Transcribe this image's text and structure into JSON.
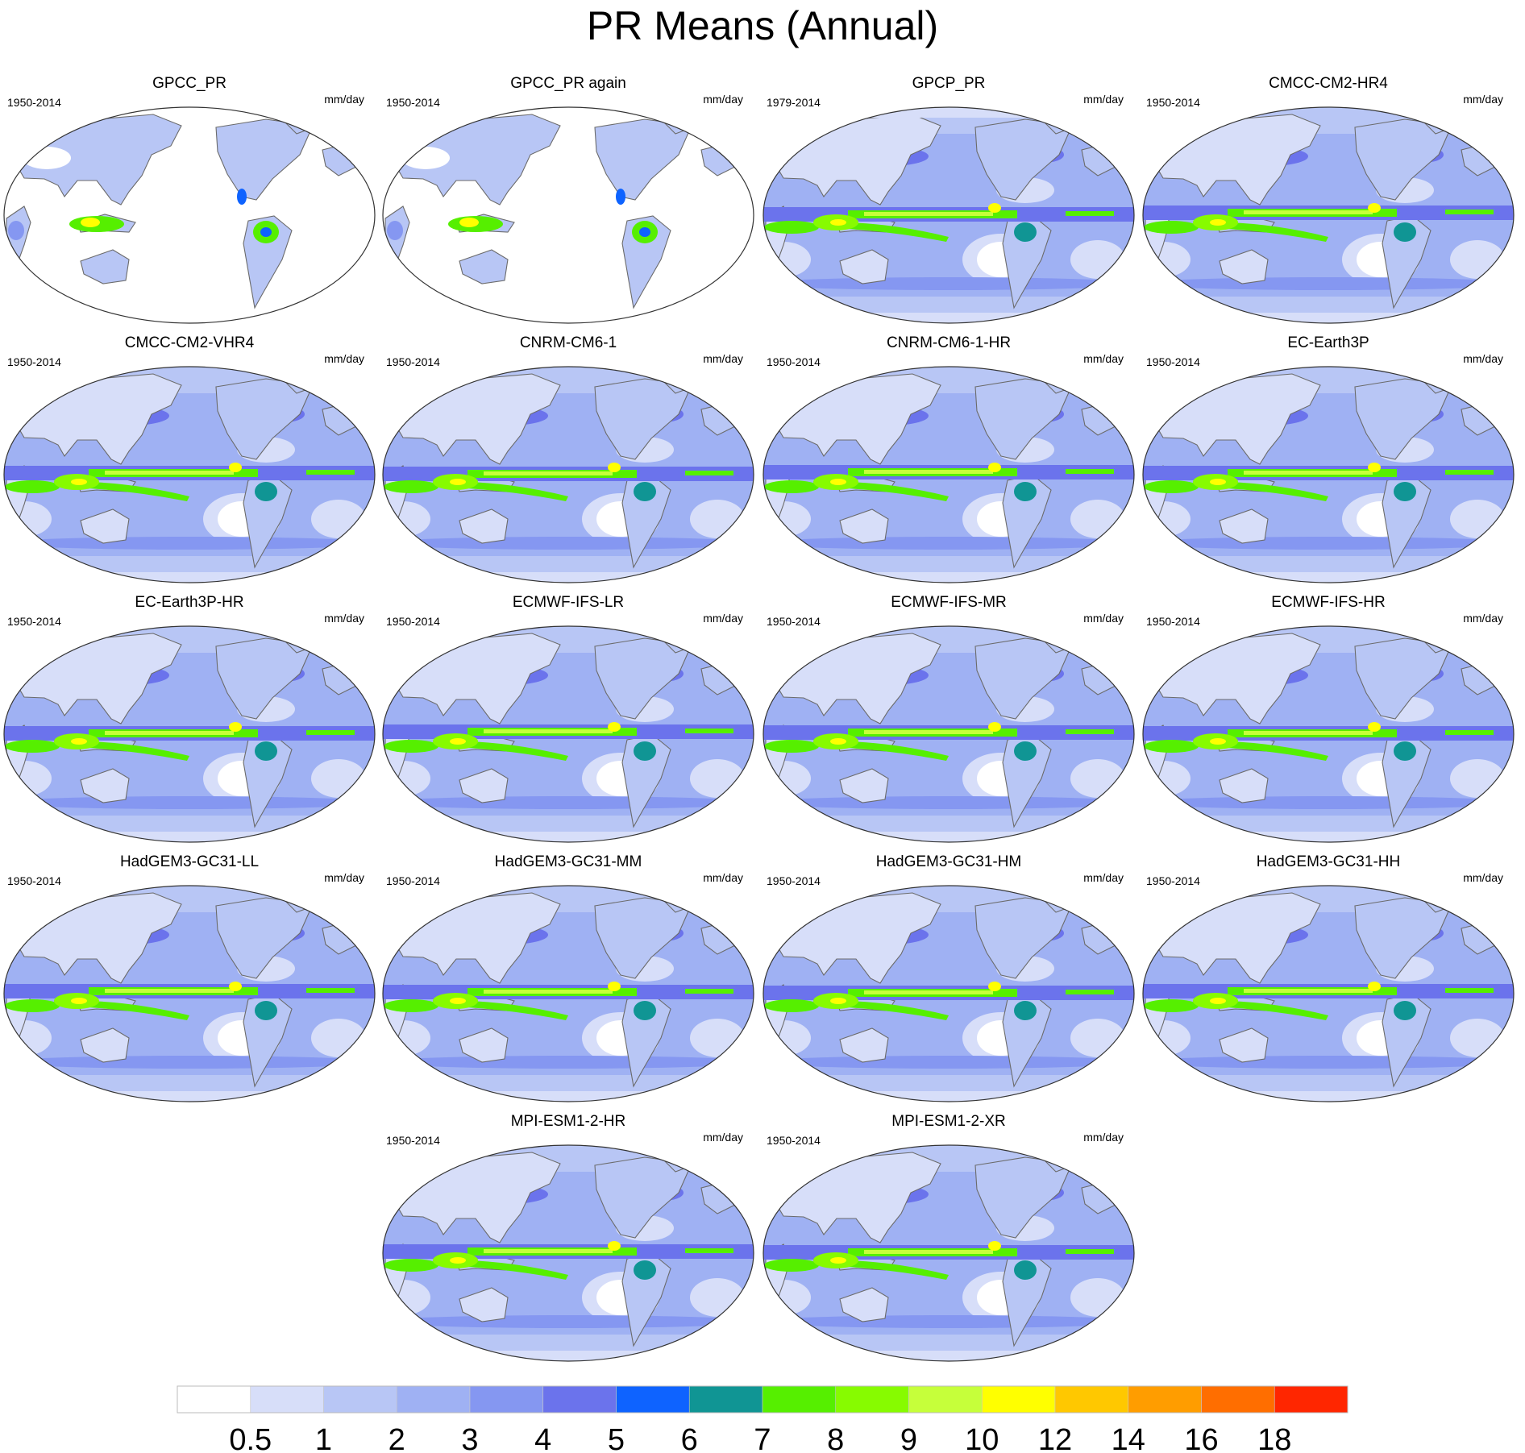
{
  "title": "PR Means (Annual)",
  "panels": [
    {
      "title": "GPCC_PR",
      "period": "1950-2014",
      "units": "mm/day",
      "style": "obs_land"
    },
    {
      "title": "GPCC_PR again",
      "period": "1950-2014",
      "units": "mm/day",
      "style": "obs_land"
    },
    {
      "title": "GPCP_PR",
      "period": "1979-2014",
      "units": "mm/day",
      "style": "obs_global"
    },
    {
      "title": "CMCC-CM2-HR4",
      "period": "1950-2014",
      "units": "mm/day",
      "style": "model"
    },
    {
      "title": "CMCC-CM2-VHR4",
      "period": "1950-2014",
      "units": "mm/day",
      "style": "model"
    },
    {
      "title": "CNRM-CM6-1",
      "period": "1950-2014",
      "units": "mm/day",
      "style": "model"
    },
    {
      "title": "CNRM-CM6-1-HR",
      "period": "1950-2014",
      "units": "mm/day",
      "style": "model"
    },
    {
      "title": "EC-Earth3P",
      "period": "1950-2014",
      "units": "mm/day",
      "style": "model"
    },
    {
      "title": "EC-Earth3P-HR",
      "period": "1950-2014",
      "units": "mm/day",
      "style": "model"
    },
    {
      "title": "ECMWF-IFS-LR",
      "period": "1950-2014",
      "units": "mm/day",
      "style": "model"
    },
    {
      "title": "ECMWF-IFS-MR",
      "period": "1950-2014",
      "units": "mm/day",
      "style": "model"
    },
    {
      "title": "ECMWF-IFS-HR",
      "period": "1950-2014",
      "units": "mm/day",
      "style": "model"
    },
    {
      "title": "HadGEM3-GC31-LL",
      "period": "1950-2014",
      "units": "mm/day",
      "style": "model"
    },
    {
      "title": "HadGEM3-GC31-MM",
      "period": "1950-2014",
      "units": "mm/day",
      "style": "model"
    },
    {
      "title": "HadGEM3-GC31-HM",
      "period": "1950-2014",
      "units": "mm/day",
      "style": "model"
    },
    {
      "title": "HadGEM3-GC31-HH",
      "period": "1950-2014",
      "units": "mm/day",
      "style": "model"
    },
    {
      "title": "MPI-ESM1-2-HR",
      "period": "1950-2014",
      "units": "mm/day",
      "style": "model"
    },
    {
      "title": "MPI-ESM1-2-XR",
      "period": "1950-2014",
      "units": "mm/day",
      "style": "model"
    }
  ],
  "chart_data": {
    "type": "heatmap",
    "title": "PR Means (Annual)",
    "projection": "Robinson, Pacific-centered",
    "units": "mm/day",
    "colorbar": {
      "tick_labels": [
        "0.5",
        "1",
        "2",
        "3",
        "4",
        "5",
        "6",
        "7",
        "8",
        "9",
        "10",
        "12",
        "14",
        "16",
        "18"
      ],
      "levels": [
        0.5,
        1,
        2,
        3,
        4,
        5,
        6,
        7,
        8,
        9,
        10,
        12,
        14,
        16,
        18
      ],
      "colors": [
        "#ffffff",
        "#d7def9",
        "#b8c6f5",
        "#9fb1f3",
        "#8597f1",
        "#6b73ec",
        "#0e63ff",
        "#109594",
        "#56ef00",
        "#87fb00",
        "#c6ff3a",
        "#ffff00",
        "#ffc800",
        "#ff9d00",
        "#ff6e00",
        "#ff2600"
      ],
      "orientation": "horizontal",
      "placement": "bottom"
    }
  }
}
